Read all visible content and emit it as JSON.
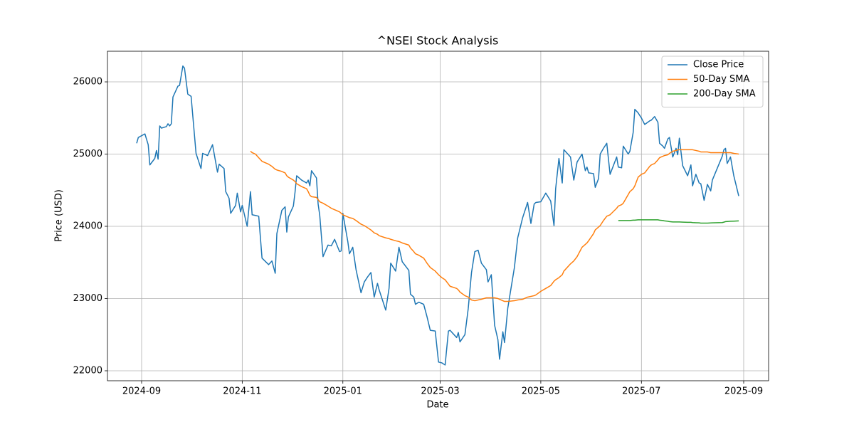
{
  "chart_data": {
    "type": "line",
    "title": "^NSEI Stock Analysis",
    "x_label": "Date",
    "y_label": "Price (USD)",
    "x": [
      19964,
      19965,
      19969,
      19971,
      19972,
      19975,
      19976,
      19977,
      19978,
      19979,
      19982,
      19983,
      19984,
      19985,
      19986,
      19989,
      19990,
      19992,
      19993,
      19995,
      19997,
      20000,
      20003,
      20004,
      20007,
      20010,
      20013,
      20014,
      20017,
      20018,
      20020,
      20021,
      20024,
      20025,
      20027,
      20028,
      20031,
      20033,
      20034,
      20036,
      20038,
      20040,
      20044,
      20046,
      20048,
      20049,
      20052,
      20054,
      20055,
      20056,
      20059,
      20060,
      20061,
      20064,
      20067,
      20068,
      20069,
      20070,
      20073,
      20074,
      20075,
      20077,
      20080,
      20082,
      20084,
      20087,
      20088,
      20089,
      20092,
      20093,
      20095,
      20097,
      20100,
      20102,
      20104,
      20106,
      20108,
      20110,
      20111,
      20115,
      20117,
      20118,
      20121,
      20123,
      20125,
      20129,
      20130,
      20132,
      20133,
      20135,
      20138,
      20140,
      20142,
      20145,
      20147,
      20149,
      20151,
      20153,
      20154,
      20158,
      20159,
      20160,
      20163,
      20165,
      20167,
      20169,
      20171,
      20173,
      20176,
      20177,
      20179,
      20181,
      20183,
      20184,
      20186,
      20187,
      20189,
      20193,
      20195,
      20198,
      20201,
      20203,
      20205,
      20206,
      20209,
      20212,
      20215,
      20217,
      20218,
      20220,
      20222,
      20223,
      20227,
      20229,
      20231,
      20234,
      20236,
      20237,
      20238,
      20241,
      20242,
      20244,
      20245,
      20247,
      20249,
      20251,
      20255,
      20256,
      20258,
      20259,
      20262,
      20263,
      20265,
      20266,
      20268,
      20270,
      20272,
      20275,
      20276,
      20278,
      20280,
      20281,
      20283,
      20284,
      20286,
      20287,
      20289,
      20291,
      20292,
      20293,
      20295,
      20298,
      20300,
      20301,
      20303,
      20305,
      20306,
      20308,
      20310,
      20312,
      20313,
      20319,
      20320,
      20321,
      20322,
      20324,
      20326,
      20329
    ],
    "series": [
      {
        "name": "Close Price",
        "color": "#1f77b4",
        "values": [
          25150,
          25230,
          25280,
          25130,
          24850,
          24940,
          25050,
          24930,
          25390,
          25360,
          25380,
          25420,
          25390,
          25420,
          25790,
          25940,
          25950,
          26220,
          26190,
          25830,
          25800,
          25010,
          24800,
          25010,
          24980,
          25130,
          24750,
          24860,
          24800,
          24480,
          24390,
          24180,
          24290,
          24460,
          24200,
          24290,
          24000,
          24480,
          24160,
          24150,
          24140,
          23560,
          23470,
          23520,
          23350,
          23900,
          24220,
          24270,
          23920,
          24130,
          24280,
          24470,
          24700,
          24640,
          24600,
          24640,
          24560,
          24770,
          24670,
          24310,
          24150,
          23580,
          23740,
          23730,
          23820,
          23650,
          23660,
          24180,
          23790,
          23620,
          23710,
          23400,
          23080,
          23230,
          23300,
          23360,
          23020,
          23210,
          23120,
          22840,
          23140,
          23490,
          23380,
          23710,
          23510,
          23390,
          23060,
          23020,
          22920,
          22950,
          22920,
          22750,
          22560,
          22550,
          22120,
          22110,
          22080,
          22550,
          22560,
          22460,
          22530,
          22400,
          22500,
          22860,
          23360,
          23650,
          23670,
          23490,
          23400,
          23230,
          23330,
          22630,
          22430,
          22160,
          22540,
          22390,
          22870,
          23430,
          23840,
          24120,
          24330,
          24040,
          24310,
          24330,
          24340,
          24460,
          24350,
          24010,
          24520,
          24940,
          24600,
          25060,
          24960,
          24640,
          24890,
          25000,
          24770,
          24820,
          24740,
          24730,
          24540,
          24660,
          25000,
          25080,
          25150,
          24720,
          24960,
          24820,
          24810,
          25110,
          25000,
          25040,
          25300,
          25620,
          25570,
          25500,
          25410,
          25460,
          25470,
          25520,
          25440,
          25150,
          25110,
          25080,
          25210,
          25230,
          24960,
          25080,
          24990,
          25220,
          24840,
          24700,
          24850,
          24560,
          24720,
          24600,
          24590,
          24360,
          24580,
          24490,
          24640,
          24970,
          25060,
          25080,
          24870,
          24960,
          24700,
          24420
        ]
      },
      {
        "name": "50-Day SMA",
        "color": "#ff7f0e",
        "values": [
          null,
          null,
          null,
          null,
          null,
          null,
          null,
          null,
          null,
          null,
          null,
          null,
          null,
          null,
          null,
          null,
          null,
          null,
          null,
          null,
          null,
          null,
          null,
          null,
          null,
          null,
          null,
          null,
          null,
          null,
          null,
          null,
          null,
          null,
          null,
          null,
          null,
          25040,
          25020,
          25000,
          24950,
          24900,
          24860,
          24830,
          24790,
          24780,
          24760,
          24740,
          24700,
          24680,
          24640,
          24620,
          24590,
          24550,
          24520,
          24480,
          24430,
          24410,
          24400,
          24370,
          24340,
          24320,
          24280,
          24250,
          24230,
          24200,
          24180,
          24160,
          24130,
          24120,
          24110,
          24080,
          24030,
          24010,
          23980,
          23950,
          23910,
          23890,
          23870,
          23840,
          23830,
          23820,
          23800,
          23790,
          23770,
          23740,
          23700,
          23650,
          23620,
          23600,
          23560,
          23490,
          23430,
          23380,
          23330,
          23290,
          23260,
          23200,
          23170,
          23140,
          23120,
          23090,
          23040,
          23020,
          22980,
          22970,
          22980,
          22990,
          23010,
          23010,
          23010,
          23010,
          23000,
          22990,
          22970,
          22960,
          22960,
          22970,
          22980,
          22990,
          23020,
          23030,
          23040,
          23050,
          23100,
          23140,
          23180,
          23240,
          23260,
          23290,
          23330,
          23380,
          23480,
          23520,
          23580,
          23710,
          23750,
          23770,
          23800,
          23900,
          23950,
          23990,
          24010,
          24080,
          24140,
          24160,
          24250,
          24280,
          24300,
          24320,
          24440,
          24480,
          24520,
          24560,
          24680,
          24720,
          24740,
          24830,
          24850,
          24870,
          24920,
          24950,
          24970,
          24980,
          24990,
          25010,
          25040,
          25050,
          25060,
          25060,
          25060,
          25060,
          25060,
          25060,
          25050,
          25040,
          25030,
          25030,
          25030,
          25020,
          25020,
          25020,
          25020,
          25020,
          25020,
          25020,
          25010,
          25000
        ]
      },
      {
        "name": "200-Day SMA",
        "color": "#2ca02c",
        "values": [
          null,
          null,
          null,
          null,
          null,
          null,
          null,
          null,
          null,
          null,
          null,
          null,
          null,
          null,
          null,
          null,
          null,
          null,
          null,
          null,
          null,
          null,
          null,
          null,
          null,
          null,
          null,
          null,
          null,
          null,
          null,
          null,
          null,
          null,
          null,
          null,
          null,
          null,
          null,
          null,
          null,
          null,
          null,
          null,
          null,
          null,
          null,
          null,
          null,
          null,
          null,
          null,
          null,
          null,
          null,
          null,
          null,
          null,
          null,
          null,
          null,
          null,
          null,
          null,
          null,
          null,
          null,
          null,
          null,
          null,
          null,
          null,
          null,
          null,
          null,
          null,
          null,
          null,
          null,
          null,
          null,
          null,
          null,
          null,
          null,
          null,
          null,
          null,
          null,
          null,
          null,
          null,
          null,
          null,
          null,
          null,
          null,
          null,
          null,
          null,
          null,
          null,
          null,
          null,
          null,
          null,
          null,
          null,
          null,
          null,
          null,
          null,
          null,
          null,
          null,
          null,
          null,
          null,
          null,
          null,
          null,
          null,
          null,
          null,
          null,
          null,
          null,
          null,
          null,
          null,
          null,
          null,
          null,
          null,
          null,
          null,
          null,
          null,
          null,
          null,
          null,
          null,
          null,
          null,
          null,
          null,
          null,
          24080,
          24080,
          24080,
          24080,
          24080,
          24085,
          24085,
          24090,
          24090,
          24090,
          24090,
          24090,
          24090,
          24090,
          24085,
          24080,
          24075,
          24070,
          24065,
          24060,
          24060,
          24060,
          24060,
          24058,
          24055,
          24055,
          24052,
          24050,
          24048,
          24045,
          24045,
          24045,
          24047,
          24048,
          24052,
          24058,
          24065,
          24067,
          24070,
          24072,
          24075
        ]
      }
    ],
    "xlim": [
      19946.3,
      20347.1
    ],
    "xticks": [
      {
        "value": 19967,
        "label": "2024-09"
      },
      {
        "value": 20028,
        "label": "2024-11"
      },
      {
        "value": 20089,
        "label": "2025-01"
      },
      {
        "value": 20148,
        "label": "2025-03"
      },
      {
        "value": 20209,
        "label": "2025-05"
      },
      {
        "value": 20270,
        "label": "2025-07"
      },
      {
        "value": 20332,
        "label": "2025-09"
      }
    ],
    "ylim": [
      21862,
      26424
    ],
    "yticks": [
      22000,
      23000,
      24000,
      25000,
      26000
    ],
    "grid": true,
    "legend": "upper right"
  }
}
